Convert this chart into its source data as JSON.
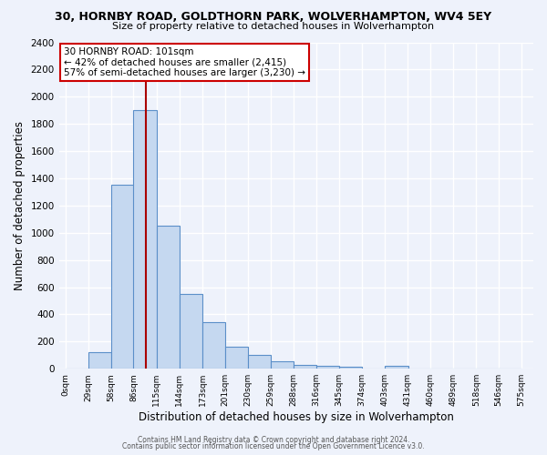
{
  "title": "30, HORNBY ROAD, GOLDTHORN PARK, WOLVERHAMPTON, WV4 5EY",
  "subtitle": "Size of property relative to detached houses in Wolverhampton",
  "xlabel": "Distribution of detached houses by size in Wolverhampton",
  "ylabel": "Number of detached properties",
  "bin_lefts": [
    0,
    29,
    58,
    86,
    115,
    144,
    173,
    201,
    230,
    259,
    288,
    316,
    345,
    374,
    403,
    431,
    460,
    489,
    518,
    546
  ],
  "bar_heights": [
    0,
    125,
    1350,
    1900,
    1050,
    550,
    340,
    165,
    105,
    55,
    30,
    20,
    15,
    0,
    20,
    0,
    0,
    0,
    0,
    0
  ],
  "categories": [
    "0sqm",
    "29sqm",
    "58sqm",
    "86sqm",
    "115sqm",
    "144sqm",
    "173sqm",
    "201sqm",
    "230sqm",
    "259sqm",
    "288sqm",
    "316sqm",
    "345sqm",
    "374sqm",
    "403sqm",
    "431sqm",
    "460sqm",
    "489sqm",
    "518sqm",
    "546sqm",
    "575sqm"
  ],
  "bar_color": "#c5d8f0",
  "bar_edge_color": "#5b8fc9",
  "ylim": [
    0,
    2400
  ],
  "yticks": [
    0,
    200,
    400,
    600,
    800,
    1000,
    1200,
    1400,
    1600,
    1800,
    2000,
    2200,
    2400
  ],
  "marker_x": 101,
  "marker_line_color": "#aa0000",
  "annotation_title": "30 HORNBY ROAD: 101sqm",
  "annotation_line1": "← 42% of detached houses are smaller (2,415)",
  "annotation_line2": "57% of semi-detached houses are larger (3,230) →",
  "annotation_box_color": "#ffffff",
  "annotation_box_edge": "#cc0000",
  "footer1": "Contains HM Land Registry data © Crown copyright and database right 2024.",
  "footer2": "Contains public sector information licensed under the Open Government Licence v3.0.",
  "background_color": "#eef2fb",
  "grid_color": "#ffffff",
  "bin_width": 29,
  "xlim_left": -8,
  "xlim_right": 590
}
